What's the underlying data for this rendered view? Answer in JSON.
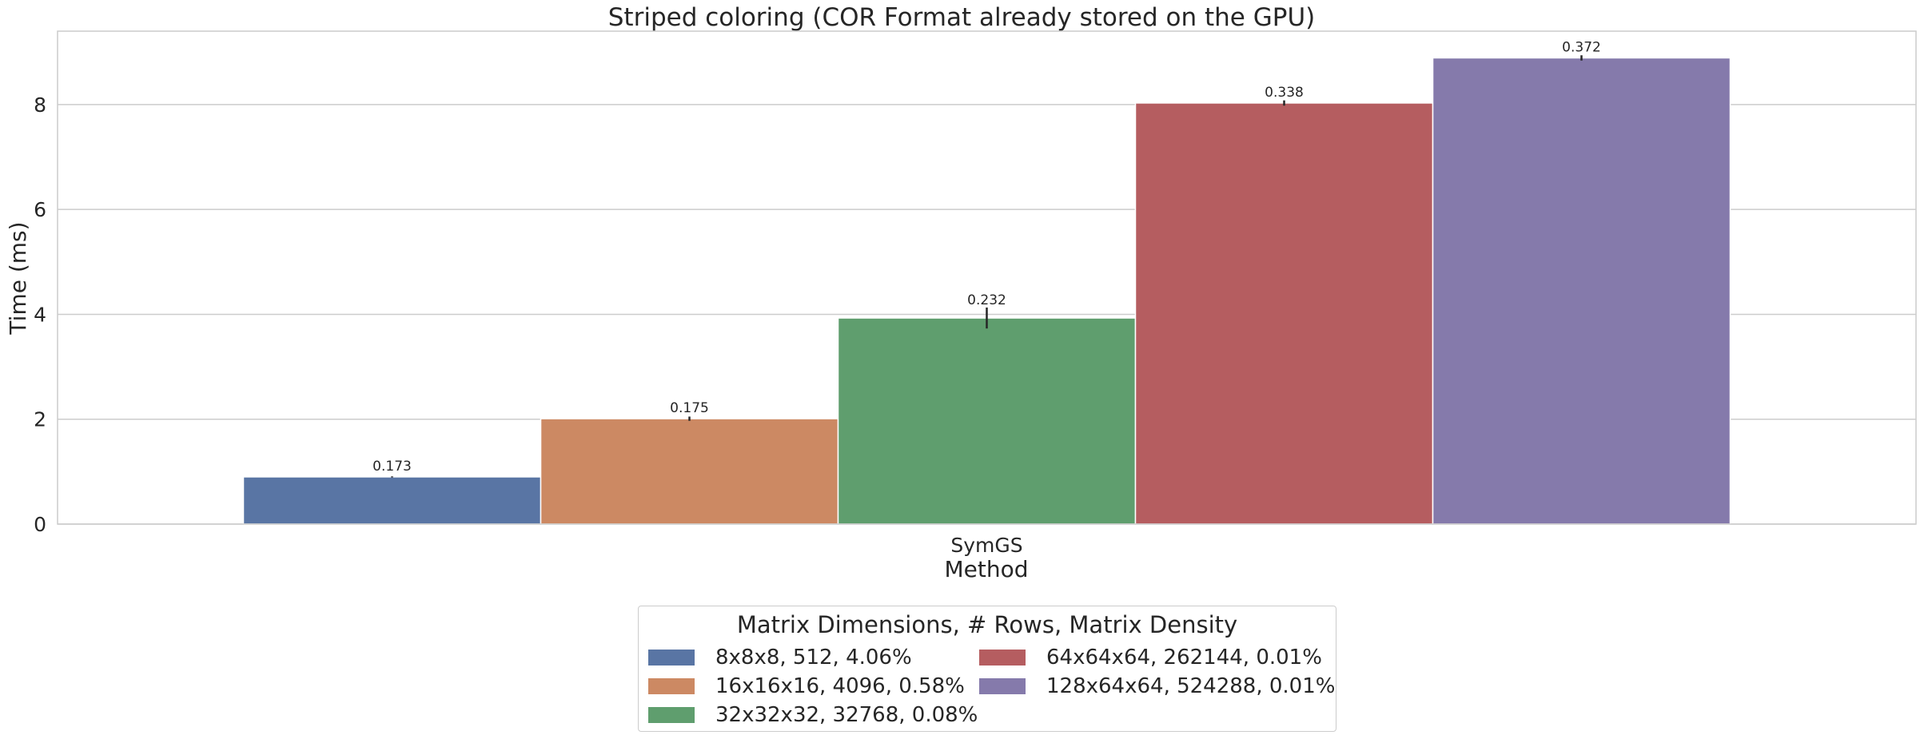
{
  "chart_data": {
    "type": "bar",
    "title": "Striped coloring (COR Format already stored on the GPU)",
    "xlabel": "Method",
    "ylabel": "Time (ms)",
    "categories": [
      "SymGS"
    ],
    "ylim": [
      0,
      9.4
    ],
    "yticks": [
      "0",
      "2",
      "4",
      "6",
      "8"
    ],
    "grid": true,
    "legend": {
      "title": "Matrix Dimensions, # Rows, Matrix Density",
      "placement": "below",
      "columns": 2
    },
    "series": [
      {
        "name": "8x8x8, 512, 4.06%",
        "color": "#5975a4",
        "values": [
          0.9
        ],
        "error": [
          0.01
        ],
        "label": "0.173"
      },
      {
        "name": "16x16x16, 4096, 0.58%",
        "color": "#cc8963",
        "values": [
          2.01
        ],
        "error": [
          0.04
        ],
        "label": "0.175"
      },
      {
        "name": "32x32x32, 32768, 0.08%",
        "color": "#5f9e6e",
        "values": [
          3.93
        ],
        "error": [
          0.2
        ],
        "label": "0.232"
      },
      {
        "name": "64x64x64, 262144, 0.01%",
        "color": "#b55d60",
        "values": [
          8.03
        ],
        "error": [
          0.05
        ],
        "label": "0.338"
      },
      {
        "name": "128x64x64, 524288, 0.01%",
        "color": "#857aab",
        "values": [
          8.89
        ],
        "error": [
          0.05
        ],
        "label": "0.372"
      }
    ]
  }
}
